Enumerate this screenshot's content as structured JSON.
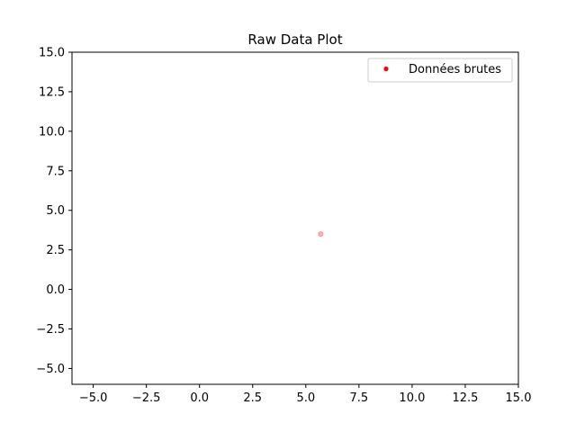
{
  "chart_data": {
    "type": "scatter",
    "title": "Raw Data Plot",
    "xlabel": "",
    "ylabel": "",
    "xlim": [
      -6,
      15
    ],
    "ylim": [
      -6,
      15
    ],
    "xticks": [
      -5.0,
      -2.5,
      0.0,
      2.5,
      5.0,
      7.5,
      10.0,
      12.5,
      15.0
    ],
    "yticks": [
      -5.0,
      -2.5,
      0.0,
      2.5,
      5.0,
      7.5,
      10.0,
      12.5,
      15.0
    ],
    "xtick_labels": [
      "−5.0",
      "−2.5",
      "0.0",
      "2.5",
      "5.0",
      "7.5",
      "10.0",
      "12.5",
      "15.0"
    ],
    "ytick_labels": [
      "−5.0",
      "−2.5",
      "0.0",
      "2.5",
      "5.0",
      "7.5",
      "10.0",
      "12.5",
      "15.0"
    ],
    "grid": false,
    "legend_position": "top-right",
    "series": [
      {
        "name": "Données brutes",
        "color": "#ff0000",
        "point_alpha": 0.3,
        "points": [
          {
            "x": 5.7,
            "y": 3.5
          }
        ]
      }
    ]
  }
}
